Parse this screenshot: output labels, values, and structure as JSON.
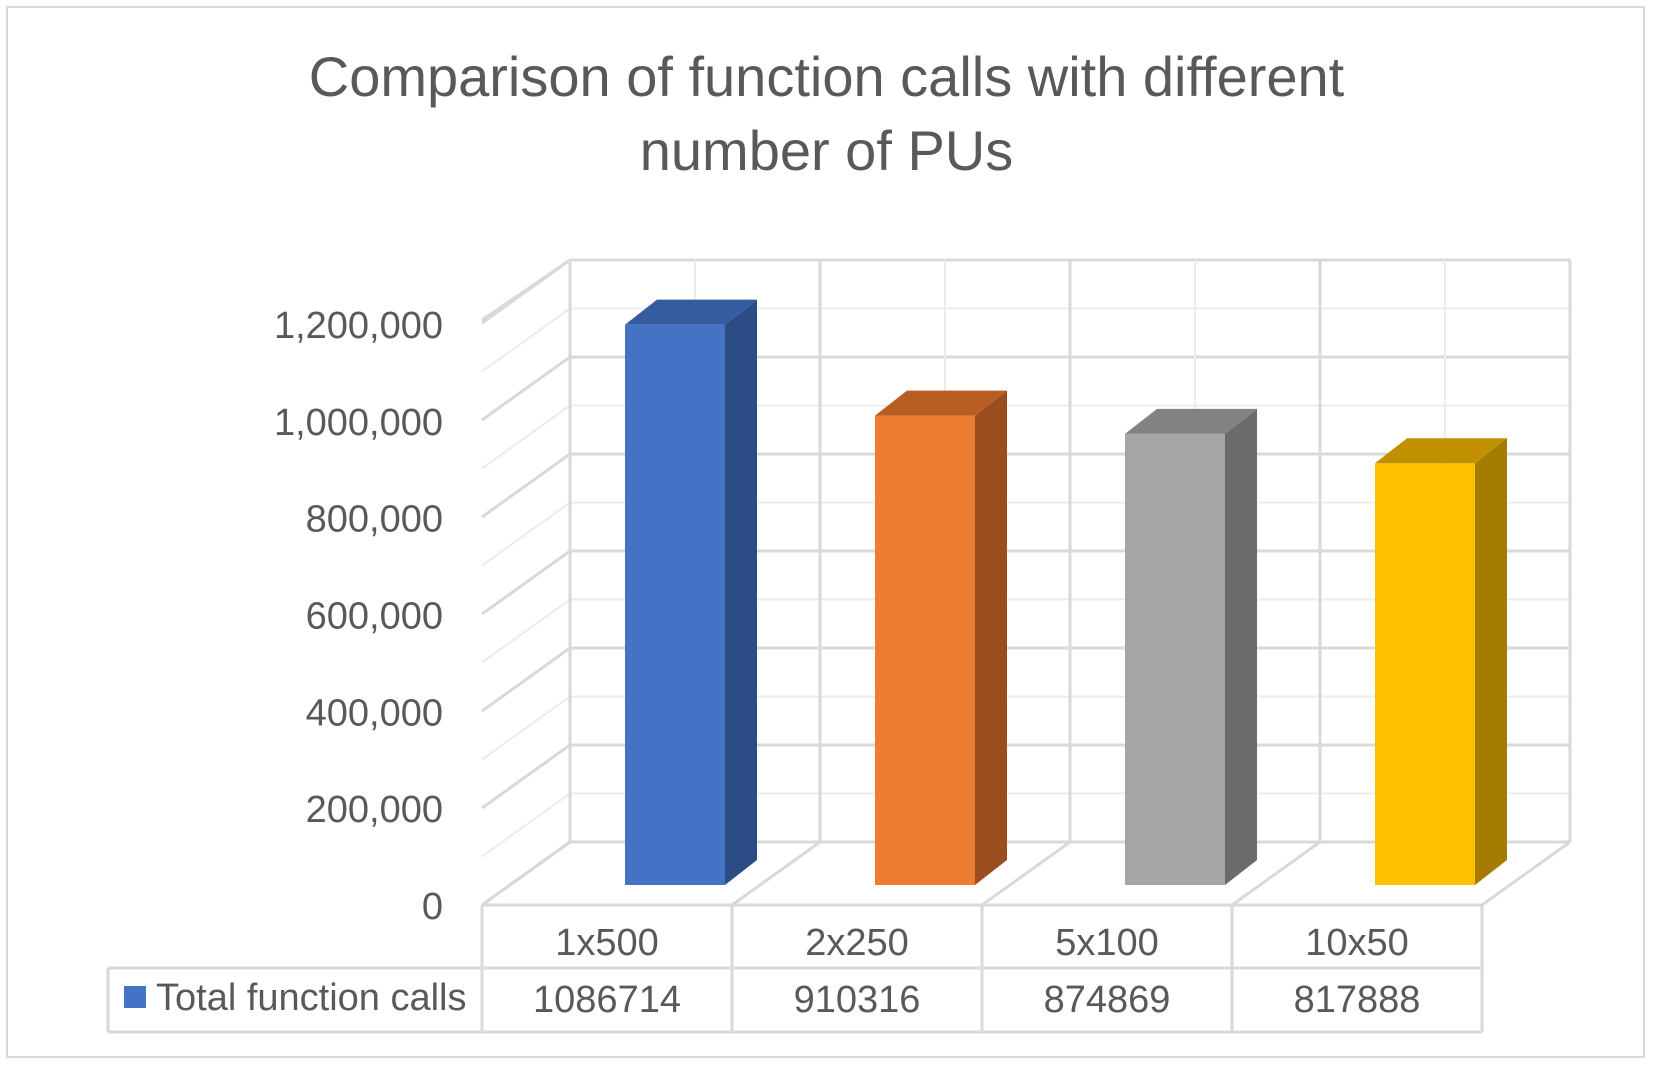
{
  "chart_data": {
    "type": "bar",
    "style": "3d-column",
    "title": "Comparison of function calls with different number of PUs",
    "title_lines": [
      "Comparison of function calls with different",
      "number of PUs"
    ],
    "categories": [
      "1x500",
      "2x250",
      "5x100",
      "10x50"
    ],
    "series": [
      {
        "name": "Total function calls",
        "values": [
          1086714,
          910316,
          874869,
          817888
        ],
        "value_labels": [
          "1086714",
          "910316",
          "874869",
          "817888"
        ]
      }
    ],
    "bar_colors": [
      "#4472c4",
      "#ed7d31",
      "#a5a5a5",
      "#ffc000"
    ],
    "bar_side_colors": [
      "#2c4c85",
      "#9c4d1e",
      "#6b6b6b",
      "#a67c00"
    ],
    "bar_top_colors": [
      "#355c9f",
      "#b85d23",
      "#828282",
      "#c09000"
    ],
    "legend_color": "#4472c4",
    "ylim": [
      0,
      1200000
    ],
    "yticks": [
      0,
      200000,
      400000,
      600000,
      800000,
      1000000,
      1200000
    ],
    "ytick_labels": [
      "0",
      "200,000",
      "400,000",
      "600,000",
      "800,000",
      "1,000,000",
      "1,200,000"
    ],
    "grid": true,
    "legend": "data-table-left",
    "xlabel": "",
    "ylabel": ""
  }
}
